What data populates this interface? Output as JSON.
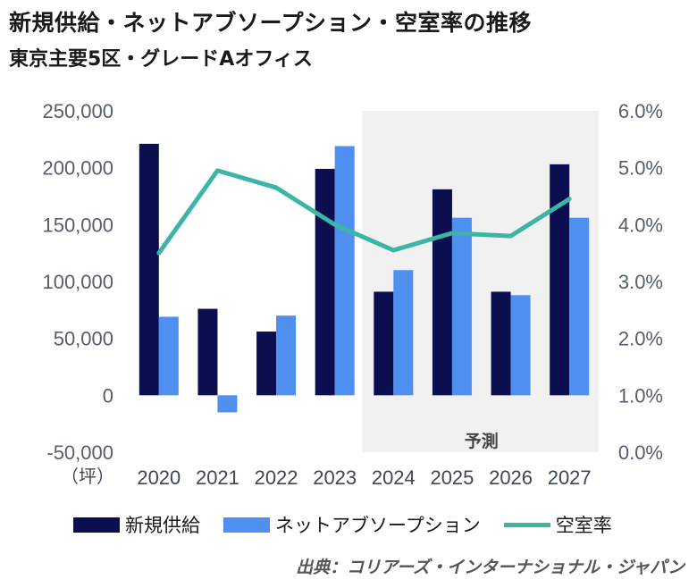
{
  "header": {
    "title": "新規供給・ネットアブソープション・空室率の推移",
    "subtitle": "東京主要5区・グレードAオフィス"
  },
  "source": "出典：コリアーズ・インターナショナル・ジャパン",
  "forecast_label": "予測",
  "y_unit": "（坪）",
  "colors": {
    "supply": "#0b0f4f",
    "absorption": "#4f8ff0",
    "vacancy": "#3bb5a5",
    "forecast_band": "#f1f1f1"
  },
  "chart_data": {
    "type": "bar",
    "categories": [
      "2020",
      "2021",
      "2022",
      "2023",
      "2024",
      "2025",
      "2026",
      "2027"
    ],
    "series": [
      {
        "name": "新規供給",
        "type": "bar",
        "axis": "left",
        "values": [
          221000,
          76000,
          56000,
          199000,
          91000,
          181000,
          91000,
          203000
        ]
      },
      {
        "name": "ネットアブソープション",
        "type": "bar",
        "axis": "left",
        "values": [
          69000,
          -15000,
          70000,
          219000,
          110000,
          156000,
          88000,
          156000
        ]
      },
      {
        "name": "空室率",
        "type": "line",
        "axis": "right",
        "values": [
          3.5,
          4.95,
          4.65,
          4.0,
          3.55,
          3.85,
          3.8,
          4.45
        ]
      }
    ],
    "ylim": [
      -50000,
      250000
    ],
    "y_ticks": [
      "250,000",
      "200,000",
      "150,000",
      "100,000",
      "50,000",
      "0",
      "-50,000"
    ],
    "y2lim": [
      0.0,
      6.0
    ],
    "y2_ticks": [
      "6.0%",
      "5.0%",
      "4.0%",
      "3.0%",
      "2.0%",
      "1.0%",
      "0.0%"
    ],
    "forecast_from": "2024",
    "legend_position": "bottom",
    "grid": false
  }
}
